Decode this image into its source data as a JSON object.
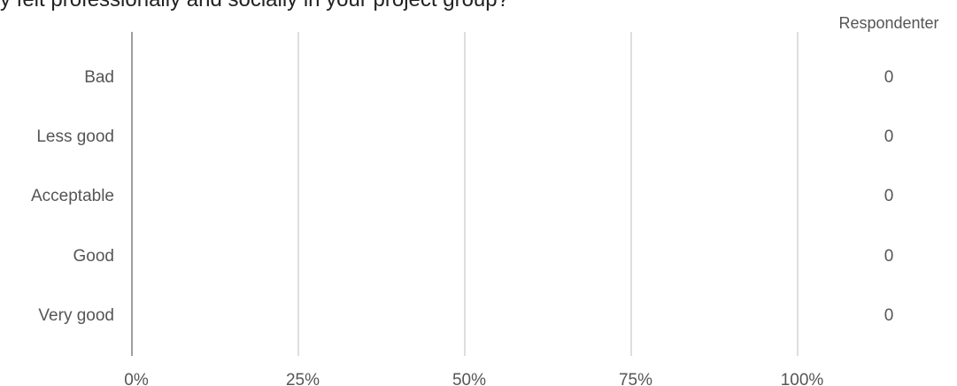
{
  "title": "y felt professionally and socially in your project group?",
  "chart_data": {
    "type": "bar",
    "orientation": "horizontal",
    "title": "y felt professionally and socially in your project group?",
    "categories": [
      "Bad",
      "Less good",
      "Acceptable",
      "Good",
      "Very good"
    ],
    "values": [
      0,
      0,
      0,
      0,
      0
    ],
    "x_ticks": [
      "0%",
      "25%",
      "50%",
      "75%",
      "100%"
    ],
    "xlim": [
      0,
      1
    ],
    "count_header": "Respondenter",
    "counts": [
      "0",
      "0",
      "0",
      "0",
      "0"
    ],
    "grid": true
  }
}
